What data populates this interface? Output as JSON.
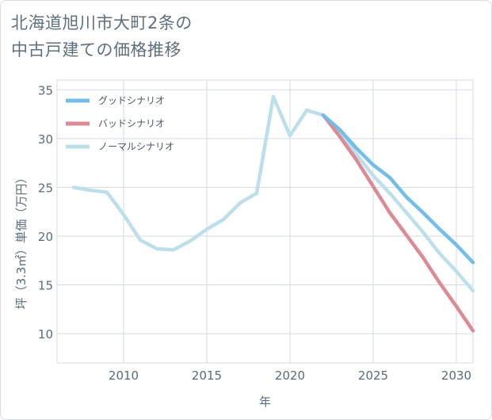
{
  "title": {
    "line1": "北海道旭川市大町2条の",
    "line2": "中古戸建ての価格推移"
  },
  "colors": {
    "good": "#74bde9",
    "bad": "#dc8b95",
    "normal": "#bddfec",
    "grid": "#d3dbe2",
    "text": "#5a6b7b"
  },
  "chart_data": {
    "type": "line",
    "xlabel": "年",
    "ylabel": "坪（3.3㎡）単価（万円）",
    "xlim": [
      2006,
      2031
    ],
    "ylim": [
      7,
      36
    ],
    "xticks": [
      2010,
      2015,
      2020,
      2025,
      2030
    ],
    "yticks": [
      10,
      15,
      20,
      25,
      30,
      35
    ],
    "grid": true,
    "legend_position": "top-left",
    "series": [
      {
        "name": "グッドシナリオ",
        "color": "#74bde9",
        "points": [
          [
            2022,
            32.4
          ],
          [
            2023,
            30.9
          ],
          [
            2024,
            29.0
          ],
          [
            2025,
            27.3
          ],
          [
            2026,
            26.0
          ],
          [
            2027,
            24.0
          ],
          [
            2028,
            22.4
          ],
          [
            2029,
            20.7
          ],
          [
            2030,
            19.1
          ],
          [
            2031,
            17.3
          ]
        ]
      },
      {
        "name": "バッドシナリオ",
        "color": "#dc8b95",
        "points": [
          [
            2022,
            32.4
          ],
          [
            2023,
            30.2
          ],
          [
            2024,
            27.8
          ],
          [
            2025,
            25.1
          ],
          [
            2026,
            22.4
          ],
          [
            2027,
            20.1
          ],
          [
            2028,
            17.8
          ],
          [
            2029,
            15.2
          ],
          [
            2030,
            12.8
          ],
          [
            2031,
            10.3
          ]
        ]
      },
      {
        "name": "ノーマルシナリオ",
        "color": "#bddfec",
        "points": [
          [
            2007,
            25.0
          ],
          [
            2008,
            24.7
          ],
          [
            2009,
            24.5
          ],
          [
            2010,
            22.2
          ],
          [
            2011,
            19.6
          ],
          [
            2012,
            18.7
          ],
          [
            2013,
            18.6
          ],
          [
            2014,
            19.5
          ],
          [
            2015,
            20.7
          ],
          [
            2016,
            21.7
          ],
          [
            2017,
            23.4
          ],
          [
            2018,
            24.4
          ],
          [
            2019,
            34.3
          ],
          [
            2020,
            30.3
          ],
          [
            2021,
            32.9
          ],
          [
            2022,
            32.4
          ],
          [
            2023,
            30.6
          ],
          [
            2024,
            28.4
          ],
          [
            2025,
            26.2
          ],
          [
            2026,
            24.4
          ],
          [
            2027,
            22.4
          ],
          [
            2028,
            20.4
          ],
          [
            2029,
            18.2
          ],
          [
            2030,
            16.4
          ],
          [
            2031,
            14.4
          ]
        ]
      }
    ]
  }
}
